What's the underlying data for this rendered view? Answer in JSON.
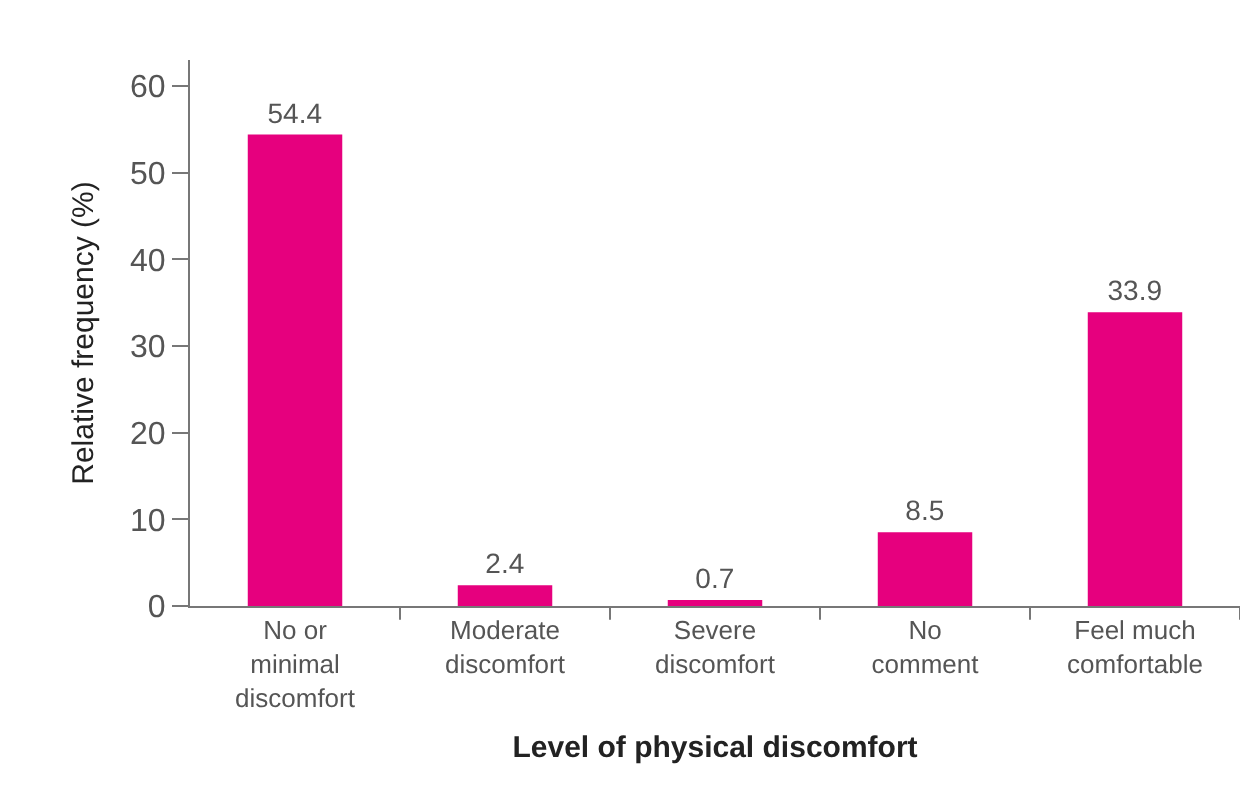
{
  "chart_data": {
    "type": "bar",
    "xlabel": "Level of physical discomfort",
    "ylabel": "Relative frequency (%)",
    "categories": [
      "No or\nminimal\ndiscomfort",
      "Moderate\ndiscomfort",
      "Severe\ndiscomfort",
      "No\ncomment",
      "Feel much\ncomfortable"
    ],
    "values": [
      54.4,
      2.4,
      0.7,
      8.5,
      33.9
    ],
    "color": "#e6007e",
    "data_labels": true,
    "ylim": [
      0,
      63
    ],
    "yticks": [
      0,
      10,
      20,
      30,
      40,
      50,
      60
    ]
  }
}
